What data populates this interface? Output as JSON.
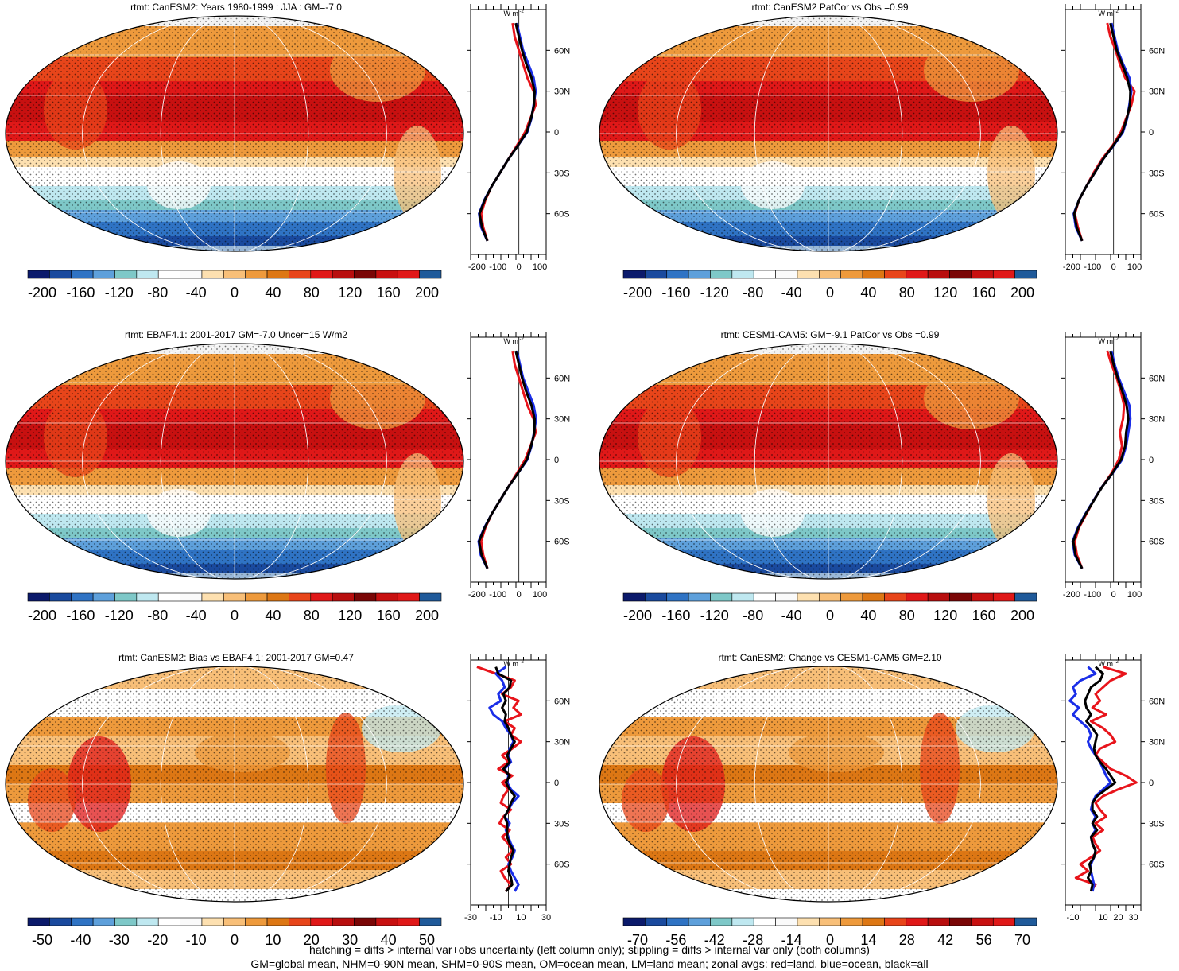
{
  "figure": {
    "footer_line1": "hatching = diffs > internal var+obs uncertainty (left column only); stippling = diffs > internal var only (both columns)",
    "footer_line2": "GM=global mean, NHM=0-90N mean, SHM=0-90S mean, OM=ocean mean, LM=land mean; zonal avgs: red=land, blue=ocean, black=all",
    "zonal_unit": "W m",
    "zonal_unit_sup": "-2"
  },
  "colors": {
    "land": "#e8141b",
    "ocean": "#1a2ee8",
    "all": "#000000"
  },
  "chart_data": [
    {
      "type": "heatmap",
      "title": "rtmt: CanESM2: Years 1980-1999 : JJA : GM=-7.0",
      "colorbar_ticks": [
        "-200",
        "-160",
        "-120",
        "-80",
        "-40",
        "0",
        "40",
        "80",
        "120",
        "160",
        "200"
      ],
      "zonal_lat_ticks": [
        "60N",
        "30N",
        "0",
        "30S",
        "60S"
      ],
      "zonal_x_ticks": [
        "-200",
        "-100",
        "0",
        "100"
      ],
      "zonal_xlim": [
        -230,
        130
      ],
      "series": [
        {
          "name": "land",
          "lat": [
            80,
            70,
            60,
            50,
            40,
            30,
            20,
            10,
            0,
            -10,
            -20,
            -30,
            -40,
            -50,
            -60,
            -70,
            -80
          ],
          "values": [
            -30,
            -20,
            0,
            20,
            40,
            70,
            80,
            55,
            30,
            -10,
            -50,
            -90,
            -130,
            -160,
            -180,
            -170,
            -150
          ]
        },
        {
          "name": "ocean",
          "lat": [
            80,
            70,
            60,
            50,
            40,
            30,
            20,
            10,
            0,
            -10,
            -20,
            -30,
            -40,
            -50,
            -60,
            -70,
            -80
          ],
          "values": [
            -10,
            5,
            20,
            45,
            70,
            80,
            70,
            60,
            40,
            -5,
            -50,
            -90,
            -130,
            -165,
            -190,
            -180,
            -150
          ]
        },
        {
          "name": "all",
          "lat": [
            80,
            70,
            60,
            50,
            40,
            30,
            20,
            10,
            0,
            -10,
            -20,
            -30,
            -40,
            -50,
            -60,
            -70,
            -80
          ],
          "values": [
            -15,
            0,
            15,
            35,
            60,
            75,
            72,
            58,
            38,
            -5,
            -50,
            -90,
            -130,
            -163,
            -188,
            -176,
            -150
          ]
        }
      ]
    },
    {
      "type": "heatmap",
      "title": "rtmt: CanESM2 PatCor vs Obs =0.99",
      "colorbar_ticks": [
        "-200",
        "-160",
        "-120",
        "-80",
        "-40",
        "0",
        "40",
        "80",
        "120",
        "160",
        "200"
      ],
      "zonal_lat_ticks": [
        "60N",
        "30N",
        "0",
        "30S",
        "60S"
      ],
      "zonal_x_ticks": [
        "-200",
        "-100",
        "0",
        "100"
      ],
      "zonal_xlim": [
        -230,
        130
      ],
      "series": [
        {
          "name": "land",
          "lat": [
            80,
            70,
            60,
            50,
            40,
            30,
            20,
            10,
            0,
            -10,
            -20,
            -30,
            -40,
            -50,
            -60,
            -70,
            -80
          ],
          "values": [
            -30,
            -15,
            10,
            30,
            55,
            100,
            85,
            60,
            35,
            -5,
            -55,
            -95,
            -130,
            -165,
            -185,
            -170,
            -150
          ]
        },
        {
          "name": "ocean",
          "lat": [
            80,
            70,
            60,
            50,
            40,
            30,
            20,
            10,
            0,
            -10,
            -20,
            -30,
            -40,
            -50,
            -60,
            -70,
            -80
          ],
          "values": [
            -10,
            5,
            20,
            45,
            75,
            85,
            75,
            65,
            45,
            0,
            -50,
            -90,
            -130,
            -165,
            -190,
            -180,
            -150
          ]
        },
        {
          "name": "all",
          "lat": [
            80,
            70,
            60,
            50,
            40,
            30,
            20,
            10,
            0,
            -10,
            -20,
            -30,
            -40,
            -50,
            -60,
            -70,
            -80
          ],
          "values": [
            -15,
            0,
            15,
            40,
            65,
            80,
            78,
            63,
            42,
            -2,
            -50,
            -90,
            -130,
            -165,
            -188,
            -176,
            -150
          ]
        }
      ]
    },
    {
      "type": "heatmap",
      "title": "rtmt: EBAF4.1: 2001-2017 GM=-7.0 Uncer=15 W/m2",
      "colorbar_ticks": [
        "-200",
        "-160",
        "-120",
        "-80",
        "-40",
        "0",
        "40",
        "80",
        "120",
        "160",
        "200"
      ],
      "zonal_lat_ticks": [
        "60N",
        "30N",
        "0",
        "30S",
        "60S"
      ],
      "zonal_x_ticks": [
        "-200",
        "-100",
        "0",
        "100"
      ],
      "zonal_xlim": [
        -230,
        130
      ],
      "series": [
        {
          "name": "land",
          "lat": [
            80,
            70,
            60,
            50,
            40,
            30,
            20,
            10,
            0,
            -10,
            -20,
            -30,
            -40,
            -50,
            -60,
            -70,
            -80
          ],
          "values": [
            -30,
            -20,
            0,
            20,
            40,
            70,
            80,
            55,
            30,
            -10,
            -50,
            -90,
            -130,
            -160,
            -180,
            -170,
            -150
          ]
        },
        {
          "name": "ocean",
          "lat": [
            80,
            70,
            60,
            50,
            40,
            30,
            20,
            10,
            0,
            -10,
            -20,
            -30,
            -40,
            -50,
            -60,
            -70,
            -80
          ],
          "values": [
            -10,
            5,
            20,
            45,
            70,
            82,
            72,
            60,
            40,
            -5,
            -50,
            -90,
            -130,
            -165,
            -192,
            -182,
            -150
          ]
        },
        {
          "name": "all",
          "lat": [
            80,
            70,
            60,
            50,
            40,
            30,
            20,
            10,
            0,
            -10,
            -20,
            -30,
            -40,
            -50,
            -60,
            -70,
            -80
          ],
          "values": [
            -15,
            0,
            15,
            35,
            60,
            75,
            74,
            58,
            38,
            -5,
            -50,
            -90,
            -130,
            -163,
            -190,
            -178,
            -150
          ]
        }
      ]
    },
    {
      "type": "heatmap",
      "title": "rtmt: CESM1-CAM5: GM=-9.1 PatCor vs Obs =0.99",
      "colorbar_ticks": [
        "-200",
        "-160",
        "-120",
        "-80",
        "-40",
        "0",
        "40",
        "80",
        "120",
        "160",
        "200"
      ],
      "zonal_lat_ticks": [
        "60N",
        "30N",
        "0",
        "30S",
        "60S"
      ],
      "zonal_x_ticks": [
        "-200",
        "-100",
        "0",
        "100"
      ],
      "zonal_xlim": [
        -230,
        130
      ],
      "series": [
        {
          "name": "land",
          "lat": [
            80,
            70,
            60,
            50,
            40,
            30,
            20,
            10,
            0,
            -10,
            -20,
            -30,
            -40,
            -50,
            -60,
            -70,
            -80
          ],
          "values": [
            -30,
            -10,
            15,
            35,
            50,
            45,
            30,
            40,
            25,
            -10,
            -55,
            -95,
            -130,
            -165,
            -185,
            -175,
            -150
          ]
        },
        {
          "name": "ocean",
          "lat": [
            80,
            70,
            60,
            50,
            40,
            30,
            20,
            10,
            0,
            -10,
            -20,
            -30,
            -40,
            -50,
            -60,
            -70,
            -80
          ],
          "values": [
            -10,
            5,
            25,
            50,
            75,
            80,
            70,
            60,
            40,
            -5,
            -55,
            -95,
            -135,
            -170,
            -195,
            -185,
            -150
          ]
        },
        {
          "name": "all",
          "lat": [
            80,
            70,
            60,
            50,
            40,
            30,
            20,
            10,
            0,
            -10,
            -20,
            -30,
            -40,
            -50,
            -60,
            -70,
            -80
          ],
          "values": [
            -15,
            0,
            20,
            42,
            62,
            70,
            60,
            55,
            36,
            -6,
            -54,
            -94,
            -133,
            -168,
            -192,
            -182,
            -150
          ]
        }
      ]
    },
    {
      "type": "heatmap",
      "title": "rtmt: CanESM2: Bias vs EBAF4.1: 2001-2017 GM=0.47",
      "colorbar_ticks": [
        "-50",
        "-40",
        "-30",
        "-20",
        "-10",
        "0",
        "10",
        "20",
        "30",
        "40",
        "50"
      ],
      "zonal_lat_ticks": [
        "60N",
        "30N",
        "0",
        "30S",
        "60S"
      ],
      "zonal_x_ticks": [
        "-30",
        "-10",
        "10",
        "30"
      ],
      "zonal_xlim": [
        -30,
        30
      ],
      "series": [
        {
          "name": "land",
          "lat": [
            85,
            80,
            75,
            70,
            65,
            60,
            55,
            50,
            45,
            40,
            35,
            30,
            25,
            20,
            15,
            10,
            5,
            0,
            -5,
            -10,
            -15,
            -20,
            -25,
            -30,
            -35,
            -40,
            -45,
            -50,
            -55,
            -60,
            -65,
            -70,
            -75,
            -80
          ],
          "values": [
            -25,
            -10,
            5,
            2,
            -5,
            8,
            4,
            10,
            -3,
            5,
            2,
            10,
            3,
            -5,
            0,
            -8,
            3,
            -5,
            0,
            -4,
            -6,
            2,
            -4,
            -7,
            1,
            -5,
            0,
            3,
            -2,
            2,
            -6,
            -3,
            2,
            -2
          ]
        },
        {
          "name": "ocean",
          "lat": [
            85,
            80,
            75,
            70,
            65,
            60,
            55,
            50,
            45,
            40,
            35,
            30,
            25,
            20,
            15,
            10,
            5,
            0,
            -5,
            -10,
            -15,
            -20,
            -25,
            -30,
            -35,
            -40,
            -45,
            -50,
            -55,
            -60,
            -65,
            -70,
            -75,
            -80
          ],
          "values": [
            -2,
            -10,
            -5,
            -3,
            -8,
            -6,
            -15,
            -12,
            -5,
            -2,
            2,
            4,
            1,
            0,
            2,
            -3,
            0,
            -1,
            2,
            8,
            3,
            0,
            -3,
            1,
            -2,
            0,
            2,
            5,
            3,
            0,
            2,
            5,
            8,
            5
          ]
        },
        {
          "name": "all",
          "lat": [
            85,
            80,
            75,
            70,
            65,
            60,
            55,
            50,
            45,
            40,
            35,
            30,
            25,
            20,
            15,
            10,
            5,
            0,
            -5,
            -10,
            -15,
            -20,
            -25,
            -30,
            -35,
            -40,
            -45,
            -50,
            -55,
            -60,
            -65,
            -70,
            -75,
            -80
          ],
          "values": [
            -10,
            -8,
            2,
            1,
            -4,
            -2,
            -5,
            -2,
            -3,
            0,
            2,
            5,
            2,
            -1,
            1,
            -4,
            1,
            -2,
            1,
            5,
            2,
            0,
            -3,
            -1,
            -1,
            -1,
            1,
            4,
            2,
            1,
            0,
            2,
            3,
            -2
          ]
        }
      ]
    },
    {
      "type": "heatmap",
      "title": "rtmt: CanESM2: Change vs CESM1-CAM5 GM=2.10",
      "colorbar_ticks": [
        "-70",
        "-56",
        "-42",
        "-28",
        "-14",
        "0",
        "14",
        "28",
        "42",
        "56",
        "70"
      ],
      "zonal_lat_ticks": [
        "60N",
        "30N",
        "0",
        "30S",
        "60S"
      ],
      "zonal_x_ticks": [
        "-10",
        "10",
        "20",
        "30"
      ],
      "zonal_xlim": [
        -15,
        35
      ],
      "series": [
        {
          "name": "land",
          "lat": [
            85,
            80,
            75,
            70,
            65,
            60,
            55,
            50,
            45,
            40,
            35,
            30,
            25,
            20,
            15,
            10,
            5,
            0,
            -5,
            -10,
            -15,
            -20,
            -25,
            -30,
            -35,
            -40,
            -45,
            -50,
            -55,
            -60,
            -65,
            -70,
            -75,
            -80
          ],
          "values": [
            10,
            25,
            15,
            10,
            5,
            8,
            3,
            12,
            2,
            10,
            15,
            18,
            8,
            5,
            10,
            15,
            25,
            32,
            20,
            10,
            5,
            8,
            12,
            5,
            10,
            3,
            5,
            8,
            2,
            -5,
            0,
            -8,
            5,
            2
          ]
        },
        {
          "name": "ocean",
          "lat": [
            85,
            80,
            75,
            70,
            65,
            60,
            55,
            50,
            45,
            40,
            35,
            30,
            25,
            20,
            15,
            10,
            5,
            0,
            -5,
            -10,
            -15,
            -20,
            -25,
            -30,
            -35,
            -40,
            -45,
            -50,
            -55,
            -60,
            -65,
            -70,
            -75,
            -80
          ],
          "values": [
            0,
            5,
            -5,
            -10,
            -8,
            -12,
            -6,
            -10,
            -5,
            0,
            2,
            0,
            2,
            5,
            8,
            10,
            12,
            15,
            10,
            5,
            3,
            2,
            5,
            3,
            5,
            2,
            3,
            5,
            4,
            2,
            2,
            3,
            4,
            3
          ]
        },
        {
          "name": "all",
          "lat": [
            85,
            80,
            75,
            70,
            65,
            60,
            55,
            50,
            45,
            40,
            35,
            30,
            25,
            20,
            15,
            10,
            5,
            0,
            -5,
            -10,
            -15,
            -20,
            -25,
            -30,
            -35,
            -40,
            -45,
            -50,
            -55,
            -60,
            -65,
            -70,
            -75,
            -80
          ],
          "values": [
            5,
            10,
            8,
            2,
            0,
            -2,
            -1,
            2,
            -1,
            3,
            6,
            5,
            4,
            5,
            8,
            12,
            15,
            18,
            12,
            6,
            3,
            3,
            6,
            3,
            6,
            2,
            3,
            5,
            4,
            1,
            2,
            0,
            3,
            2
          ]
        }
      ]
    }
  ]
}
